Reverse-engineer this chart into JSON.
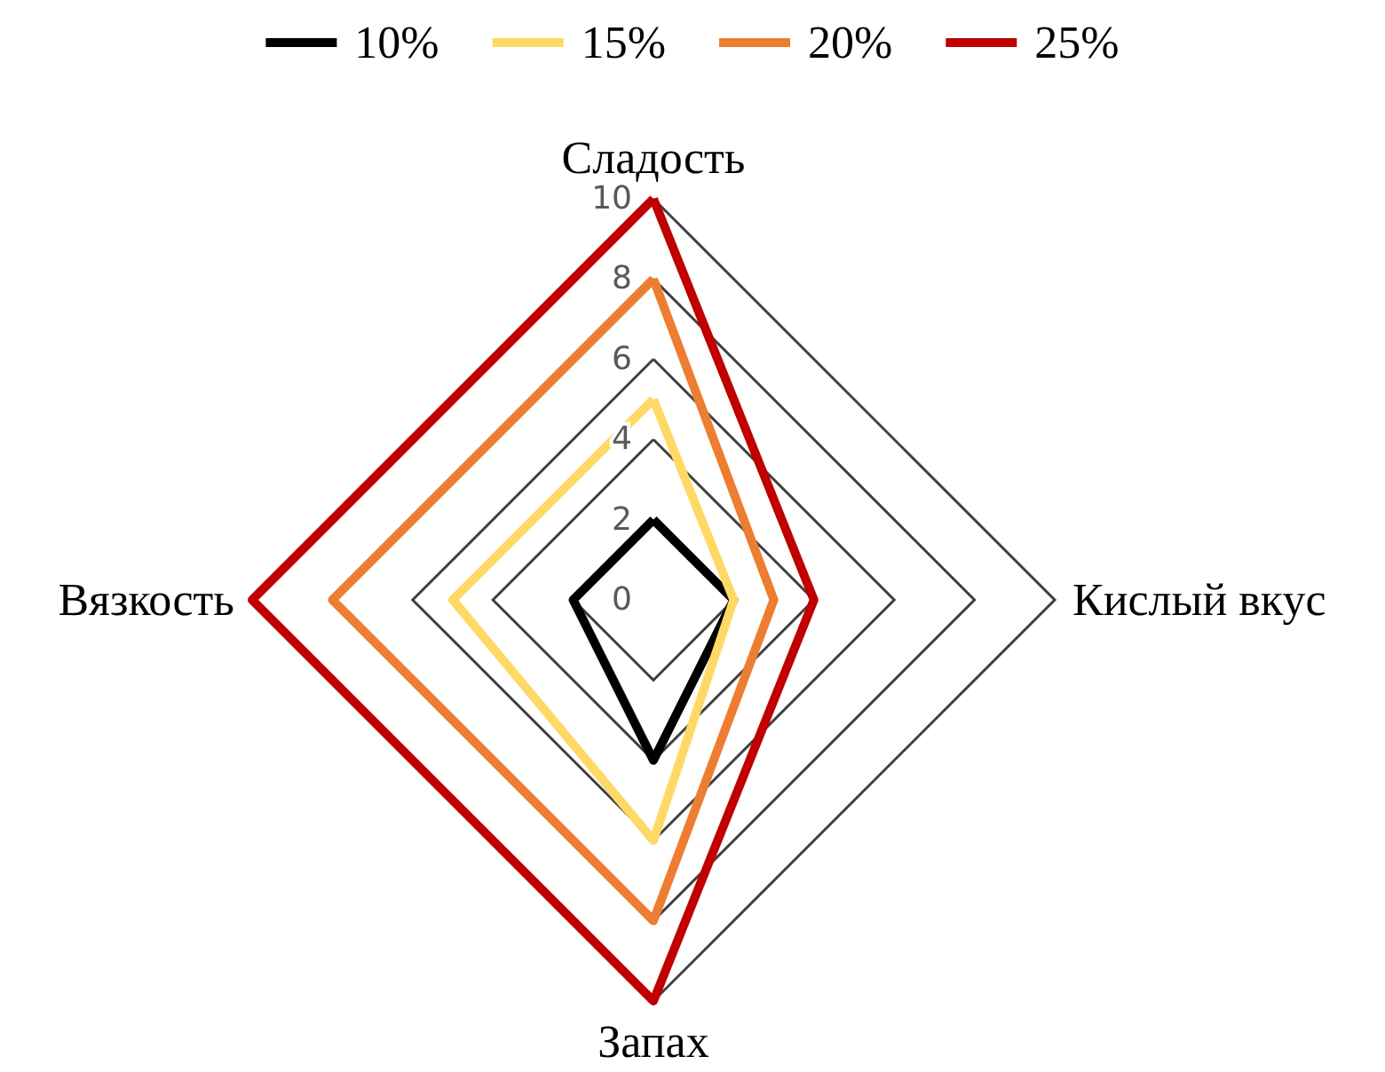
{
  "chart_data": {
    "type": "radar",
    "categories": [
      "Сладость",
      "Кислый вкус",
      "Запах",
      "Вязкость"
    ],
    "ylim": [
      0,
      10
    ],
    "yticks": [
      0,
      2,
      4,
      6,
      8,
      10
    ],
    "legend": "top",
    "series": [
      {
        "name": "10%",
        "color": "#000000",
        "values": [
          2,
          2,
          4,
          2
        ]
      },
      {
        "name": "15%",
        "color": "#ffd966",
        "values": [
          5,
          2,
          6,
          5
        ]
      },
      {
        "name": "20%",
        "color": "#ed7d31",
        "values": [
          8,
          3,
          8,
          8
        ]
      },
      {
        "name": "25%",
        "color": "#c00000",
        "values": [
          10,
          4,
          10,
          10
        ]
      }
    ]
  }
}
